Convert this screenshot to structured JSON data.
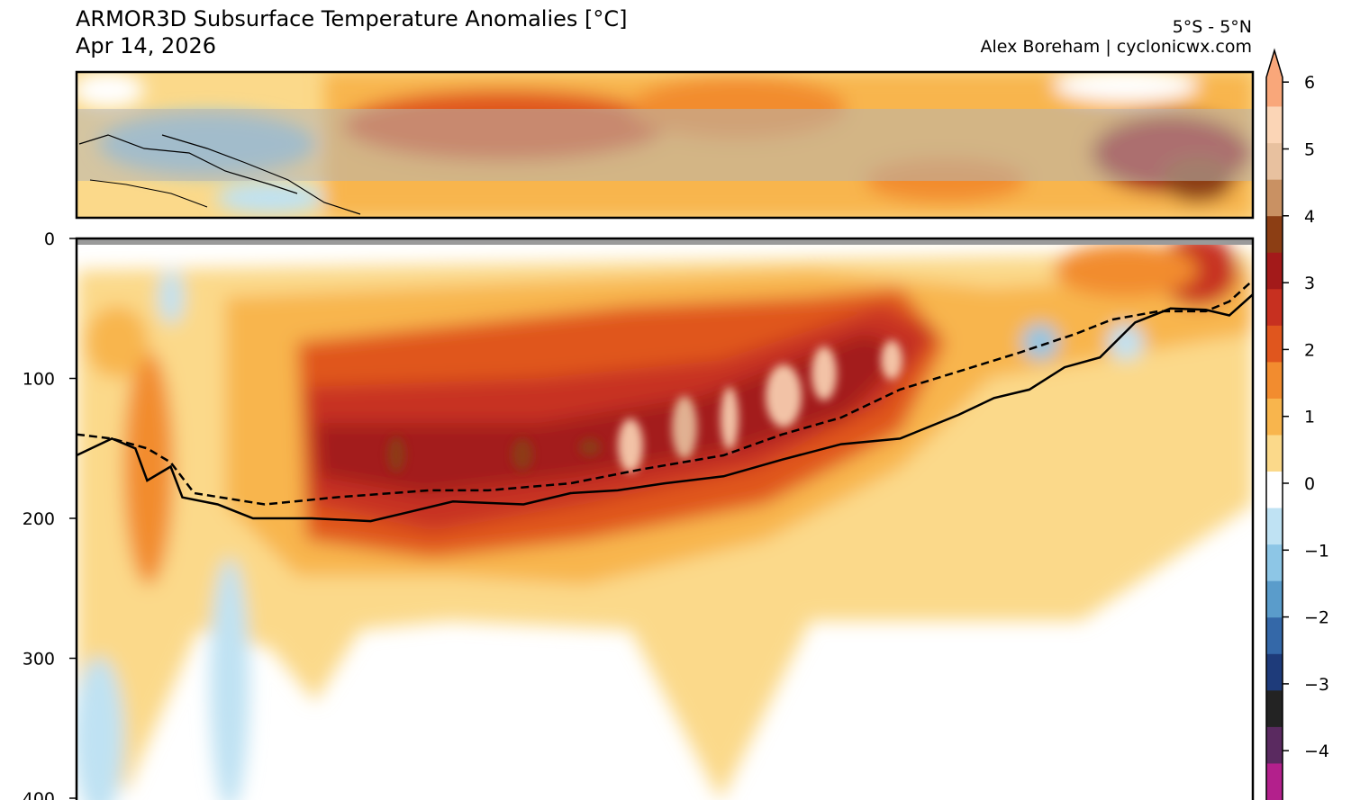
{
  "header": {
    "title": "ARMOR3D Subsurface Temperature Anomalies [°C]",
    "date": "Apr 14, 2026",
    "region": "5°S - 5°N",
    "credit": "Alex Boreham | cyclonicwx.com"
  },
  "chart_data": [
    {
      "type": "heatmap",
      "panel": "map",
      "title": "",
      "region_band": "5°S - 5°N",
      "note": "surface anomaly map of the tropical Pacific with 5°S–5°N band shaded grey"
    },
    {
      "type": "heatmap",
      "panel": "depth-section",
      "ylabel": "",
      "yticks": [
        0,
        100,
        200,
        300,
        400
      ],
      "ylim": [
        400,
        0
      ],
      "x_range": [
        0,
        1
      ],
      "series": [
        {
          "style": "solid",
          "points": [
            [
              0.0,
              155
            ],
            [
              0.03,
              143
            ],
            [
              0.05,
              150
            ],
            [
              0.06,
              173
            ],
            [
              0.08,
              163
            ],
            [
              0.09,
              185
            ],
            [
              0.12,
              190
            ],
            [
              0.15,
              200
            ],
            [
              0.2,
              200
            ],
            [
              0.25,
              202
            ],
            [
              0.28,
              196
            ],
            [
              0.32,
              188
            ],
            [
              0.38,
              190
            ],
            [
              0.42,
              182
            ],
            [
              0.46,
              180
            ],
            [
              0.5,
              175
            ],
            [
              0.55,
              170
            ],
            [
              0.6,
              158
            ],
            [
              0.65,
              147
            ],
            [
              0.7,
              143
            ],
            [
              0.75,
              126
            ],
            [
              0.78,
              114
            ],
            [
              0.81,
              108
            ],
            [
              0.84,
              92
            ],
            [
              0.87,
              85
            ],
            [
              0.9,
              60
            ],
            [
              0.93,
              50
            ],
            [
              0.96,
              51
            ],
            [
              0.98,
              55
            ],
            [
              1.0,
              40
            ]
          ]
        },
        {
          "style": "dashed",
          "points": [
            [
              0.0,
              140
            ],
            [
              0.03,
              143
            ],
            [
              0.06,
              150
            ],
            [
              0.08,
              160
            ],
            [
              0.1,
              182
            ],
            [
              0.16,
              190
            ],
            [
              0.22,
              185
            ],
            [
              0.3,
              180
            ],
            [
              0.35,
              180
            ],
            [
              0.42,
              175
            ],
            [
              0.48,
              165
            ],
            [
              0.55,
              155
            ],
            [
              0.6,
              140
            ],
            [
              0.65,
              128
            ],
            [
              0.7,
              108
            ],
            [
              0.75,
              95
            ],
            [
              0.8,
              82
            ],
            [
              0.85,
              68
            ],
            [
              0.88,
              58
            ],
            [
              0.92,
              52
            ],
            [
              0.96,
              52
            ],
            [
              0.98,
              45
            ],
            [
              1.0,
              30
            ]
          ]
        }
      ],
      "anomaly_blobs": [
        {
          "x": 0.06,
          "depth": 210,
          "value": 2
        },
        {
          "x": 0.25,
          "depth": 160,
          "value": 3
        },
        {
          "x": 0.35,
          "depth": 175,
          "value": 3.5
        },
        {
          "x": 0.47,
          "depth": 160,
          "value": 3.5
        },
        {
          "x": 0.62,
          "depth": 150,
          "value": 4
        },
        {
          "x": 0.7,
          "depth": 130,
          "value": 5
        },
        {
          "x": 0.78,
          "depth": 110,
          "value": 5
        },
        {
          "x": 0.95,
          "depth": 30,
          "value": 2.5
        },
        {
          "x": 0.04,
          "depth": 350,
          "value": -1
        },
        {
          "x": 0.12,
          "depth": 350,
          "value": -1
        }
      ]
    }
  ],
  "colorbar": {
    "ticks": [
      6,
      5,
      4,
      3,
      2,
      1,
      0,
      -1,
      -2,
      -3,
      -4
    ],
    "tick_labels": [
      "6",
      "5",
      "4",
      "3",
      "2",
      "1",
      "0",
      "−1",
      "−2",
      "−3",
      "−4"
    ],
    "colors": [
      "#f9a77a",
      "#fbd5b6",
      "#e8c19f",
      "#c99163",
      "#8c3e14",
      "#a31a1a",
      "#c73020",
      "#e0561e",
      "#f28c2f",
      "#f8b54d",
      "#fbd98a",
      "#ffffff",
      "#bfe2f3",
      "#8dc6e6",
      "#5a9ccb",
      "#3468a8",
      "#1e3b7a",
      "#232323",
      "#5a2a60",
      "#b3208c"
    ]
  }
}
